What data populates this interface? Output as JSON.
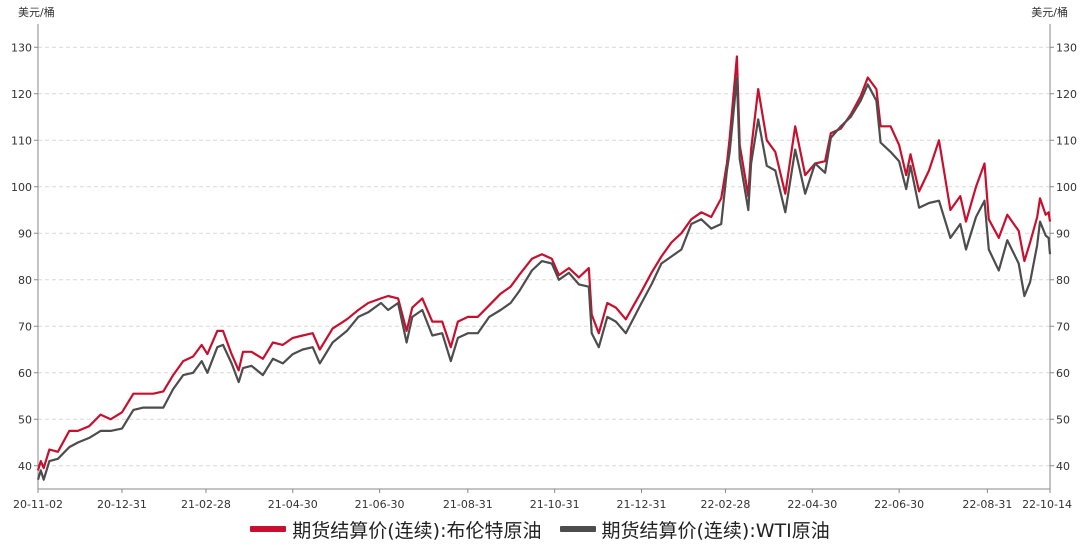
{
  "chart_data": {
    "type": "line",
    "left_unit": "美元/桶",
    "right_unit": "美元/桶",
    "ylim": [
      35,
      135
    ],
    "y_ticks": [
      40,
      50,
      60,
      70,
      80,
      90,
      100,
      110,
      120,
      130
    ],
    "x_range": [
      "2020-11-02",
      "2022-10-14"
    ],
    "x_ticks": [
      "20-11-02",
      "20-12-31",
      "21-02-28",
      "21-04-30",
      "21-06-30",
      "21-08-31",
      "21-10-31",
      "21-12-31",
      "22-02-28",
      "22-04-30",
      "22-06-30",
      "22-08-31",
      "22-10-14"
    ],
    "grid": "horizontal dashed",
    "legend_position": "bottom",
    "series": [
      {
        "name": "期货结算价(连续):布伦特原油",
        "color": "#c8102e",
        "points": [
          [
            "2020-11-02",
            39.0
          ],
          [
            "2020-11-04",
            41.0
          ],
          [
            "2020-11-06",
            39.5
          ],
          [
            "2020-11-10",
            43.5
          ],
          [
            "2020-11-16",
            43.0
          ],
          [
            "2020-11-24",
            47.5
          ],
          [
            "2020-11-30",
            47.5
          ],
          [
            "2020-12-08",
            48.5
          ],
          [
            "2020-12-16",
            51.0
          ],
          [
            "2020-12-23",
            50.0
          ],
          [
            "2020-12-31",
            51.5
          ],
          [
            "2021-01-08",
            55.5
          ],
          [
            "2021-01-15",
            55.5
          ],
          [
            "2021-01-22",
            55.5
          ],
          [
            "2021-01-29",
            56.0
          ],
          [
            "2021-02-05",
            59.5
          ],
          [
            "2021-02-12",
            62.5
          ],
          [
            "2021-02-19",
            63.5
          ],
          [
            "2021-02-25",
            66.0
          ],
          [
            "2021-03-01",
            64.0
          ],
          [
            "2021-03-08",
            69.0
          ],
          [
            "2021-03-12",
            69.0
          ],
          [
            "2021-03-18",
            64.0
          ],
          [
            "2021-03-23",
            60.5
          ],
          [
            "2021-03-26",
            64.5
          ],
          [
            "2021-04-01",
            64.5
          ],
          [
            "2021-04-09",
            63.0
          ],
          [
            "2021-04-16",
            66.5
          ],
          [
            "2021-04-23",
            66.0
          ],
          [
            "2021-04-30",
            67.5
          ],
          [
            "2021-05-07",
            68.0
          ],
          [
            "2021-05-14",
            68.5
          ],
          [
            "2021-05-19",
            65.0
          ],
          [
            "2021-05-28",
            69.5
          ],
          [
            "2021-06-07",
            71.5
          ],
          [
            "2021-06-15",
            73.5
          ],
          [
            "2021-06-22",
            75.0
          ],
          [
            "2021-07-01",
            76.0
          ],
          [
            "2021-07-06",
            76.5
          ],
          [
            "2021-07-13",
            76.0
          ],
          [
            "2021-07-19",
            69.0
          ],
          [
            "2021-07-23",
            74.0
          ],
          [
            "2021-07-30",
            76.0
          ],
          [
            "2021-08-06",
            71.0
          ],
          [
            "2021-08-13",
            71.0
          ],
          [
            "2021-08-19",
            65.5
          ],
          [
            "2021-08-24",
            71.0
          ],
          [
            "2021-08-31",
            72.0
          ],
          [
            "2021-09-07",
            72.0
          ],
          [
            "2021-09-15",
            74.5
          ],
          [
            "2021-09-23",
            77.0
          ],
          [
            "2021-09-30",
            78.5
          ],
          [
            "2021-10-06",
            81.0
          ],
          [
            "2021-10-15",
            84.5
          ],
          [
            "2021-10-22",
            85.5
          ],
          [
            "2021-10-29",
            84.5
          ],
          [
            "2021-11-03",
            81.0
          ],
          [
            "2021-11-10",
            82.5
          ],
          [
            "2021-11-17",
            80.5
          ],
          [
            "2021-11-24",
            82.5
          ],
          [
            "2021-11-26",
            72.5
          ],
          [
            "2021-12-01",
            68.5
          ],
          [
            "2021-12-07",
            75.0
          ],
          [
            "2021-12-13",
            74.0
          ],
          [
            "2021-12-20",
            71.5
          ],
          [
            "2021-12-31",
            77.5
          ],
          [
            "2022-01-07",
            81.5
          ],
          [
            "2022-01-14",
            85.0
          ],
          [
            "2022-01-21",
            88.0
          ],
          [
            "2022-01-28",
            90.0
          ],
          [
            "2022-02-04",
            93.0
          ],
          [
            "2022-02-11",
            94.5
          ],
          [
            "2022-02-18",
            93.5
          ],
          [
            "2022-02-25",
            97.5
          ],
          [
            "2022-03-01",
            105.0
          ],
          [
            "2022-03-03",
            110.5
          ],
          [
            "2022-03-08",
            128.0
          ],
          [
            "2022-03-10",
            109.0
          ],
          [
            "2022-03-16",
            98.0
          ],
          [
            "2022-03-18",
            108.0
          ],
          [
            "2022-03-23",
            121.0
          ],
          [
            "2022-03-29",
            110.0
          ],
          [
            "2022-04-04",
            107.5
          ],
          [
            "2022-04-11",
            98.5
          ],
          [
            "2022-04-18",
            113.0
          ],
          [
            "2022-04-25",
            102.5
          ],
          [
            "2022-05-02",
            105.0
          ],
          [
            "2022-05-09",
            105.5
          ],
          [
            "2022-05-13",
            111.5
          ],
          [
            "2022-05-20",
            112.5
          ],
          [
            "2022-05-27",
            115.5
          ],
          [
            "2022-06-03",
            119.5
          ],
          [
            "2022-06-08",
            123.5
          ],
          [
            "2022-06-14",
            121.0
          ],
          [
            "2022-06-17",
            113.0
          ],
          [
            "2022-06-24",
            113.0
          ],
          [
            "2022-06-30",
            109.0
          ],
          [
            "2022-07-05",
            102.5
          ],
          [
            "2022-07-08",
            107.0
          ],
          [
            "2022-07-14",
            99.0
          ],
          [
            "2022-07-21",
            103.5
          ],
          [
            "2022-07-28",
            110.0
          ],
          [
            "2022-08-05",
            95.0
          ],
          [
            "2022-08-12",
            98.0
          ],
          [
            "2022-08-16",
            92.5
          ],
          [
            "2022-08-23",
            100.0
          ],
          [
            "2022-08-29",
            105.0
          ],
          [
            "2022-09-01",
            93.0
          ],
          [
            "2022-09-08",
            89.0
          ],
          [
            "2022-09-14",
            94.0
          ],
          [
            "2022-09-22",
            90.5
          ],
          [
            "2022-09-26",
            84.0
          ],
          [
            "2022-09-30",
            88.0
          ],
          [
            "2022-10-05",
            93.5
          ],
          [
            "2022-10-07",
            97.5
          ],
          [
            "2022-10-11",
            94.0
          ],
          [
            "2022-10-13",
            94.5
          ],
          [
            "2022-10-14",
            92.5
          ]
        ]
      },
      {
        "name": "期货结算价(连续):WTI原油",
        "color": "#4d4d4d",
        "points": [
          [
            "2020-11-02",
            37.0
          ],
          [
            "2020-11-04",
            39.0
          ],
          [
            "2020-11-06",
            37.0
          ],
          [
            "2020-11-10",
            41.0
          ],
          [
            "2020-11-16",
            41.5
          ],
          [
            "2020-11-24",
            44.0
          ],
          [
            "2020-11-30",
            45.0
          ],
          [
            "2020-12-08",
            46.0
          ],
          [
            "2020-12-16",
            47.5
          ],
          [
            "2020-12-23",
            47.5
          ],
          [
            "2020-12-31",
            48.0
          ],
          [
            "2021-01-08",
            52.0
          ],
          [
            "2021-01-15",
            52.5
          ],
          [
            "2021-01-22",
            52.5
          ],
          [
            "2021-01-29",
            52.5
          ],
          [
            "2021-02-05",
            56.5
          ],
          [
            "2021-02-12",
            59.5
          ],
          [
            "2021-02-19",
            60.0
          ],
          [
            "2021-02-25",
            62.5
          ],
          [
            "2021-03-01",
            60.0
          ],
          [
            "2021-03-08",
            65.5
          ],
          [
            "2021-03-12",
            66.0
          ],
          [
            "2021-03-18",
            62.0
          ],
          [
            "2021-03-23",
            58.0
          ],
          [
            "2021-03-26",
            61.0
          ],
          [
            "2021-04-01",
            61.5
          ],
          [
            "2021-04-09",
            59.5
          ],
          [
            "2021-04-16",
            63.0
          ],
          [
            "2021-04-23",
            62.0
          ],
          [
            "2021-04-30",
            64.0
          ],
          [
            "2021-05-07",
            65.0
          ],
          [
            "2021-05-14",
            65.5
          ],
          [
            "2021-05-19",
            62.0
          ],
          [
            "2021-05-28",
            66.5
          ],
          [
            "2021-06-07",
            69.0
          ],
          [
            "2021-06-15",
            72.0
          ],
          [
            "2021-06-22",
            73.0
          ],
          [
            "2021-07-01",
            75.0
          ],
          [
            "2021-07-06",
            73.5
          ],
          [
            "2021-07-13",
            75.0
          ],
          [
            "2021-07-19",
            66.5
          ],
          [
            "2021-07-23",
            72.0
          ],
          [
            "2021-07-30",
            73.5
          ],
          [
            "2021-08-06",
            68.0
          ],
          [
            "2021-08-13",
            68.5
          ],
          [
            "2021-08-19",
            62.5
          ],
          [
            "2021-08-24",
            67.5
          ],
          [
            "2021-08-31",
            68.5
          ],
          [
            "2021-09-07",
            68.5
          ],
          [
            "2021-09-15",
            72.0
          ],
          [
            "2021-09-23",
            73.5
          ],
          [
            "2021-09-30",
            75.0
          ],
          [
            "2021-10-06",
            77.5
          ],
          [
            "2021-10-15",
            82.0
          ],
          [
            "2021-10-22",
            84.0
          ],
          [
            "2021-10-29",
            83.5
          ],
          [
            "2021-11-03",
            80.0
          ],
          [
            "2021-11-10",
            81.5
          ],
          [
            "2021-11-17",
            79.0
          ],
          [
            "2021-11-24",
            78.5
          ],
          [
            "2021-11-26",
            68.5
          ],
          [
            "2021-12-01",
            65.5
          ],
          [
            "2021-12-07",
            72.0
          ],
          [
            "2021-12-13",
            71.0
          ],
          [
            "2021-12-20",
            68.5
          ],
          [
            "2021-12-31",
            75.0
          ],
          [
            "2022-01-07",
            79.0
          ],
          [
            "2022-01-14",
            83.5
          ],
          [
            "2022-01-21",
            85.0
          ],
          [
            "2022-01-28",
            86.5
          ],
          [
            "2022-02-04",
            92.0
          ],
          [
            "2022-02-11",
            93.0
          ],
          [
            "2022-02-18",
            91.0
          ],
          [
            "2022-02-25",
            92.0
          ],
          [
            "2022-03-01",
            103.5
          ],
          [
            "2022-03-03",
            107.5
          ],
          [
            "2022-03-08",
            123.5
          ],
          [
            "2022-03-10",
            106.0
          ],
          [
            "2022-03-16",
            95.0
          ],
          [
            "2022-03-18",
            105.0
          ],
          [
            "2022-03-23",
            114.5
          ],
          [
            "2022-03-29",
            104.5
          ],
          [
            "2022-04-04",
            103.5
          ],
          [
            "2022-04-11",
            94.5
          ],
          [
            "2022-04-18",
            108.0
          ],
          [
            "2022-04-25",
            98.5
          ],
          [
            "2022-05-02",
            105.0
          ],
          [
            "2022-05-09",
            103.0
          ],
          [
            "2022-05-13",
            110.5
          ],
          [
            "2022-05-20",
            113.0
          ],
          [
            "2022-05-27",
            115.0
          ],
          [
            "2022-06-03",
            118.5
          ],
          [
            "2022-06-08",
            122.0
          ],
          [
            "2022-06-14",
            118.5
          ],
          [
            "2022-06-17",
            109.5
          ],
          [
            "2022-06-24",
            107.5
          ],
          [
            "2022-06-30",
            105.5
          ],
          [
            "2022-07-05",
            99.5
          ],
          [
            "2022-07-08",
            104.5
          ],
          [
            "2022-07-14",
            95.5
          ],
          [
            "2022-07-21",
            96.5
          ],
          [
            "2022-07-28",
            97.0
          ],
          [
            "2022-08-05",
            89.0
          ],
          [
            "2022-08-12",
            92.0
          ],
          [
            "2022-08-16",
            86.5
          ],
          [
            "2022-08-23",
            93.5
          ],
          [
            "2022-08-29",
            97.0
          ],
          [
            "2022-09-01",
            86.5
          ],
          [
            "2022-09-08",
            82.0
          ],
          [
            "2022-09-14",
            88.5
          ],
          [
            "2022-09-22",
            83.5
          ],
          [
            "2022-09-26",
            76.5
          ],
          [
            "2022-09-30",
            79.5
          ],
          [
            "2022-10-05",
            87.5
          ],
          [
            "2022-10-07",
            92.5
          ],
          [
            "2022-10-11",
            89.5
          ],
          [
            "2022-10-13",
            89.0
          ],
          [
            "2022-10-14",
            85.5
          ]
        ]
      }
    ]
  }
}
